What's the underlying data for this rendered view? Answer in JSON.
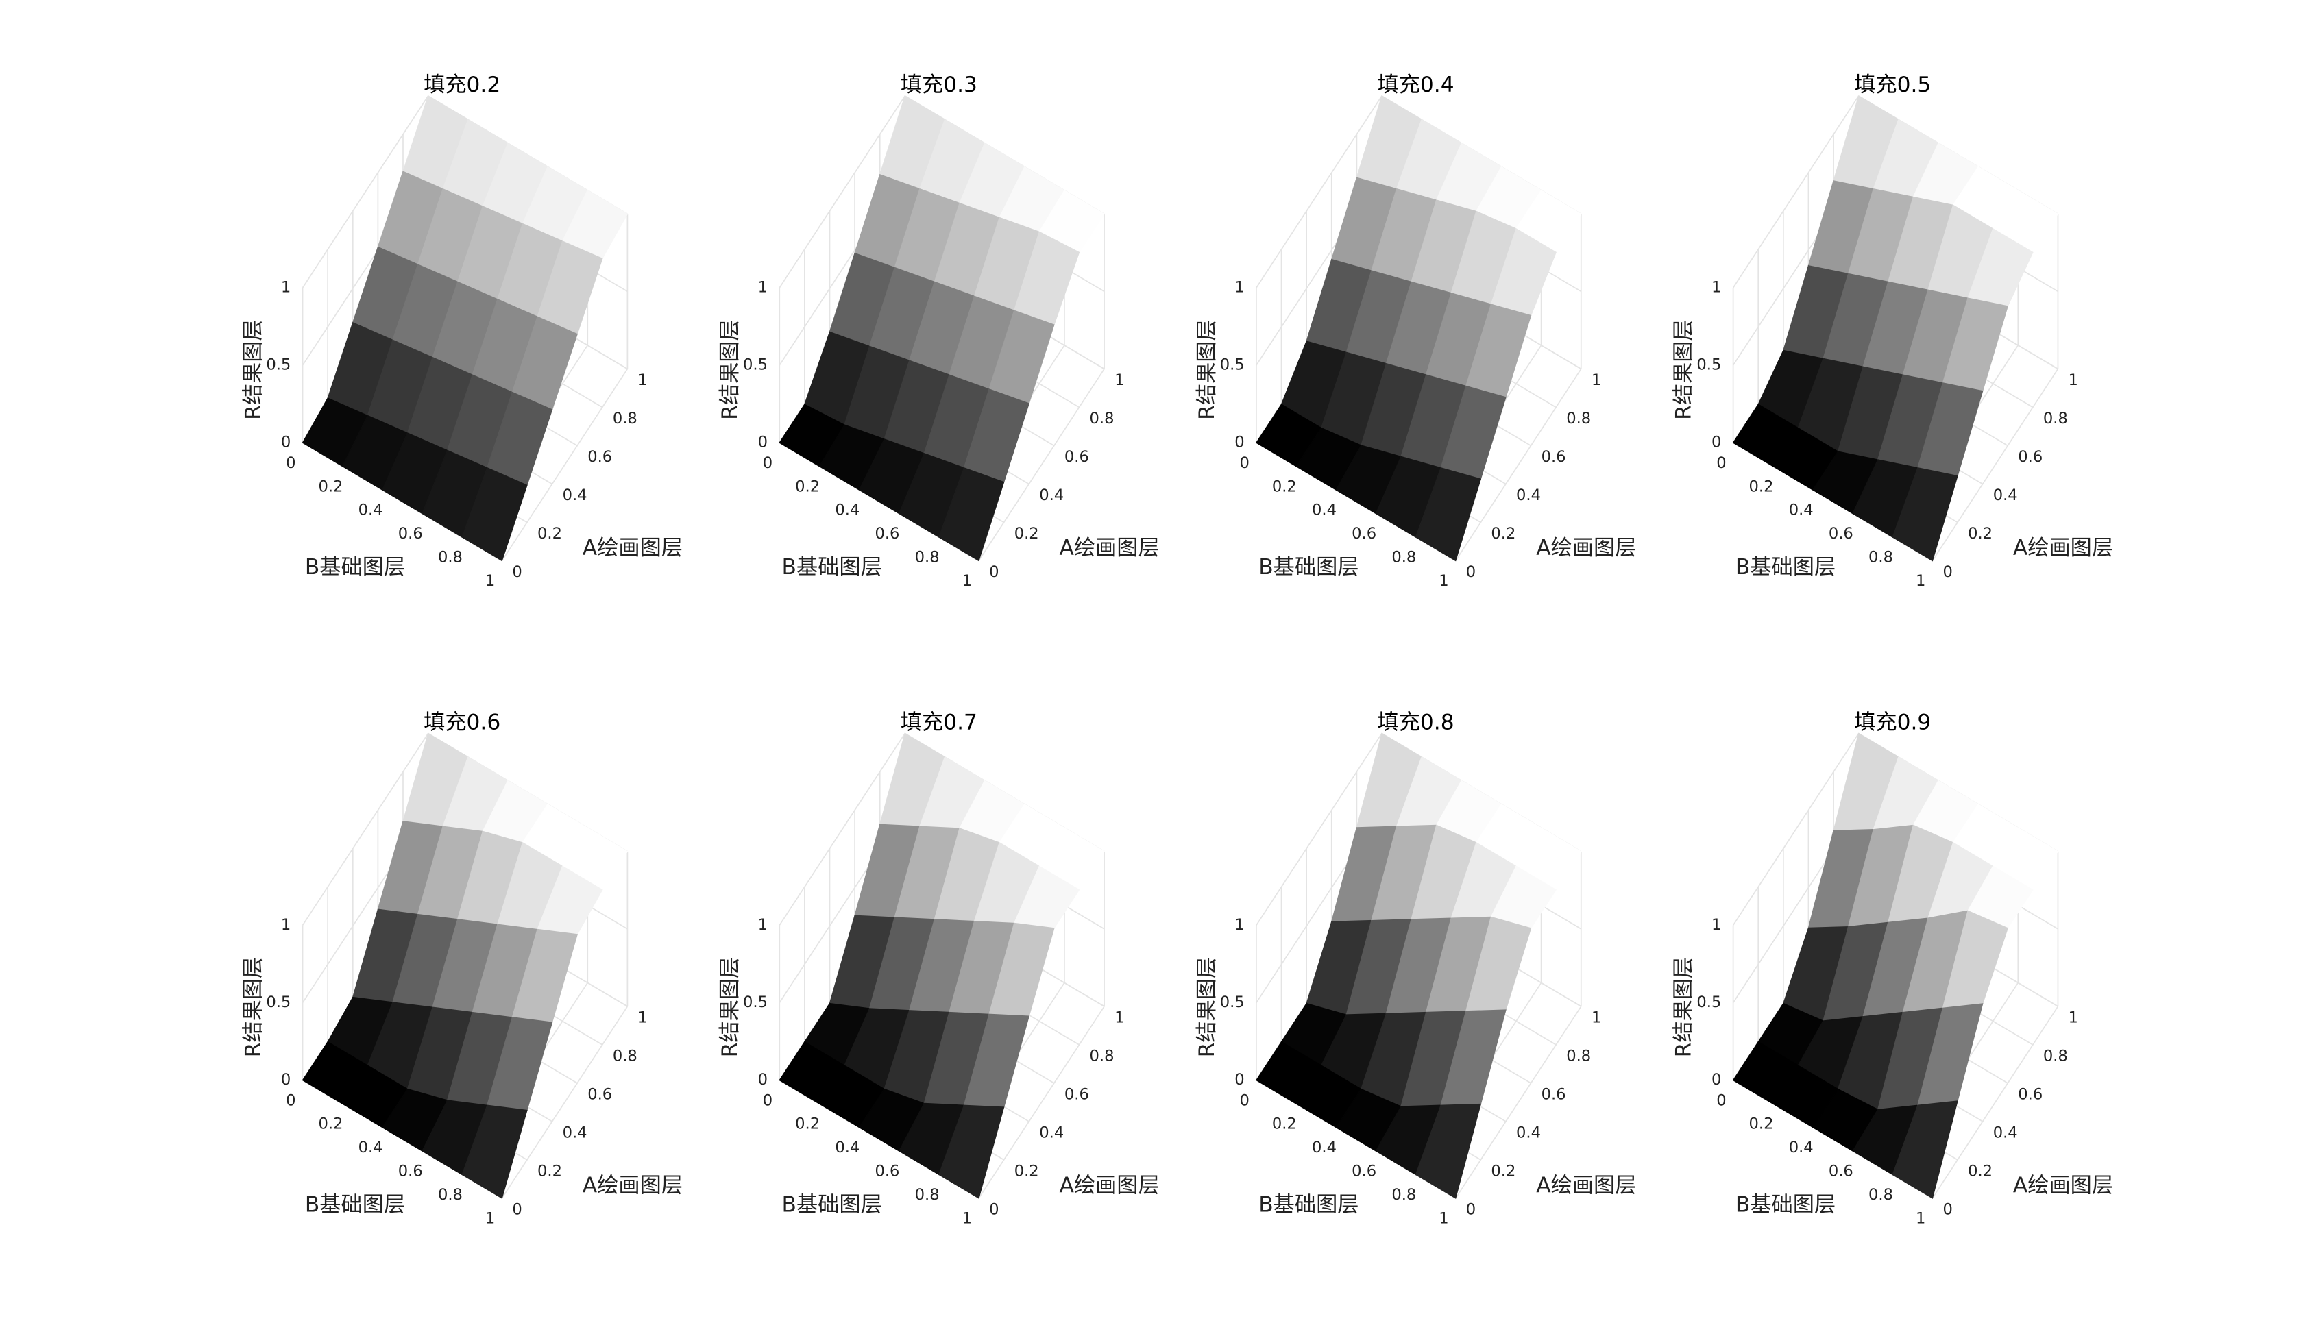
{
  "chart_data": [
    {
      "type": "surface",
      "title": "填充0.2",
      "xlabel": "B基础图层",
      "ylabel": "A绘画图层",
      "zlabel": "R结果图层",
      "colormap": "gray",
      "grid": true,
      "x": [
        0,
        0.2,
        0.4,
        0.6,
        0.8,
        1
      ],
      "y": [
        0,
        0.2,
        0.4,
        0.6,
        0.8,
        1
      ],
      "z": [
        [
          0,
          0.04,
          0.28,
          0.52,
          0.76,
          1
        ],
        [
          0,
          0.08,
          0.32,
          0.56,
          0.8,
          1
        ],
        [
          0,
          0.12,
          0.36,
          0.6,
          0.84,
          1
        ],
        [
          0,
          0.16,
          0.4,
          0.64,
          0.88,
          1
        ],
        [
          0,
          0.2,
          0.44,
          0.68,
          0.92,
          1
        ],
        [
          0,
          0.24,
          0.48,
          0.72,
          0.96,
          1
        ]
      ],
      "xlim": [
        0,
        1
      ],
      "ylim": [
        0,
        1
      ],
      "zlim": [
        0,
        1
      ],
      "xticks": [
        0,
        0.2,
        0.4,
        0.6,
        0.8,
        1
      ],
      "yticks": [
        0,
        0.2,
        0.4,
        0.6,
        0.8,
        1
      ],
      "zticks": [
        0,
        0.5,
        1
      ]
    },
    {
      "type": "surface",
      "title": "填充0.3",
      "xlabel": "B基础图层",
      "ylabel": "A绘画图层",
      "zlabel": "R结果图层",
      "colormap": "gray",
      "grid": true,
      "x": [
        0,
        0.2,
        0.4,
        0.6,
        0.8,
        1
      ],
      "y": [
        0,
        0.2,
        0.4,
        0.6,
        0.8,
        1
      ],
      "z": [
        [
          0,
          0,
          0.22,
          0.48,
          0.74,
          1
        ],
        [
          0,
          0.02,
          0.28,
          0.54,
          0.8,
          1
        ],
        [
          0,
          0.08,
          0.34,
          0.6,
          0.86,
          1
        ],
        [
          0,
          0.14,
          0.4,
          0.66,
          0.92,
          1
        ],
        [
          0,
          0.2,
          0.46,
          0.72,
          0.98,
          1
        ],
        [
          0,
          0.26,
          0.52,
          0.78,
          1,
          1
        ]
      ],
      "xlim": [
        0,
        1
      ],
      "ylim": [
        0,
        1
      ],
      "zlim": [
        0,
        1
      ],
      "xticks": [
        0,
        0.2,
        0.4,
        0.6,
        0.8,
        1
      ],
      "yticks": [
        0,
        0.2,
        0.4,
        0.6,
        0.8,
        1
      ],
      "zticks": [
        0,
        0.5,
        1
      ]
    },
    {
      "type": "surface",
      "title": "填充0.4",
      "xlabel": "B基础图层",
      "ylabel": "A绘画图层",
      "zlabel": "R结果图层",
      "colormap": "gray",
      "grid": true,
      "x": [
        0,
        0.2,
        0.4,
        0.6,
        0.8,
        1
      ],
      "y": [
        0,
        0.2,
        0.4,
        0.6,
        0.8,
        1
      ],
      "z": [
        [
          0,
          0,
          0.16,
          0.44,
          0.72,
          1
        ],
        [
          0,
          0,
          0.24,
          0.52,
          0.8,
          1
        ],
        [
          0,
          0.04,
          0.32,
          0.6,
          0.88,
          1
        ],
        [
          0,
          0.12,
          0.4,
          0.68,
          0.96,
          1
        ],
        [
          0,
          0.2,
          0.48,
          0.76,
          1,
          1
        ],
        [
          0,
          0.28,
          0.56,
          0.84,
          1,
          1
        ]
      ],
      "xlim": [
        0,
        1
      ],
      "ylim": [
        0,
        1
      ],
      "zlim": [
        0,
        1
      ],
      "xticks": [
        0,
        0.2,
        0.4,
        0.6,
        0.8,
        1
      ],
      "yticks": [
        0,
        0.2,
        0.4,
        0.6,
        0.8,
        1
      ],
      "zticks": [
        0,
        0.5,
        1
      ]
    },
    {
      "type": "surface",
      "title": "填充0.5",
      "xlabel": "B基础图层",
      "ylabel": "A绘画图层",
      "zlabel": "R结果图层",
      "colormap": "gray",
      "grid": true,
      "x": [
        0,
        0.2,
        0.4,
        0.6,
        0.8,
        1
      ],
      "y": [
        0,
        0.2,
        0.4,
        0.6,
        0.8,
        1
      ],
      "z": [
        [
          0,
          0,
          0.1,
          0.4,
          0.7,
          1
        ],
        [
          0,
          0,
          0.2,
          0.5,
          0.8,
          1
        ],
        [
          0,
          0,
          0.3,
          0.6,
          0.9,
          1
        ],
        [
          0,
          0.1,
          0.4,
          0.7,
          1,
          1
        ],
        [
          0,
          0.2,
          0.5,
          0.8,
          1,
          1
        ],
        [
          0,
          0.3,
          0.6,
          0.9,
          1,
          1
        ]
      ],
      "xlim": [
        0,
        1
      ],
      "ylim": [
        0,
        1
      ],
      "zlim": [
        0,
        1
      ],
      "xticks": [
        0,
        0.2,
        0.4,
        0.6,
        0.8,
        1
      ],
      "yticks": [
        0,
        0.2,
        0.4,
        0.6,
        0.8,
        1
      ],
      "zticks": [
        0,
        0.5,
        1
      ]
    },
    {
      "type": "surface",
      "title": "填充0.6",
      "xlabel": "B基础图层",
      "ylabel": "A绘画图层",
      "zlabel": "R结果图层",
      "colormap": "gray",
      "grid": true,
      "x": [
        0,
        0.2,
        0.4,
        0.6,
        0.8,
        1
      ],
      "y": [
        0,
        0.2,
        0.4,
        0.6,
        0.8,
        1
      ],
      "z": [
        [
          0,
          0,
          0.04,
          0.36,
          0.68,
          1
        ],
        [
          0,
          0,
          0.16,
          0.48,
          0.8,
          1
        ],
        [
          0,
          0,
          0.28,
          0.6,
          0.92,
          1
        ],
        [
          0,
          0.08,
          0.4,
          0.72,
          1,
          1
        ],
        [
          0,
          0.2,
          0.52,
          0.84,
          1,
          1
        ],
        [
          0,
          0.32,
          0.64,
          0.96,
          1,
          1
        ]
      ],
      "xlim": [
        0,
        1
      ],
      "ylim": [
        0,
        1
      ],
      "zlim": [
        0,
        1
      ],
      "xticks": [
        0,
        0.2,
        0.4,
        0.6,
        0.8,
        1
      ],
      "yticks": [
        0,
        0.2,
        0.4,
        0.6,
        0.8,
        1
      ],
      "zticks": [
        0,
        0.5,
        1
      ]
    },
    {
      "type": "surface",
      "title": "填充0.7",
      "xlabel": "B基础图层",
      "ylabel": "A绘画图层",
      "zlabel": "R结果图层",
      "colormap": "gray",
      "grid": true,
      "x": [
        0,
        0.2,
        0.4,
        0.6,
        0.8,
        1
      ],
      "y": [
        0,
        0.2,
        0.4,
        0.6,
        0.8,
        1
      ],
      "z": [
        [
          0,
          0,
          0,
          0.32,
          0.66,
          1
        ],
        [
          0,
          0,
          0.12,
          0.46,
          0.8,
          1
        ],
        [
          0,
          0,
          0.26,
          0.6,
          0.94,
          1
        ],
        [
          0,
          0.06,
          0.4,
          0.74,
          1,
          1
        ],
        [
          0,
          0.2,
          0.54,
          0.88,
          1,
          1
        ],
        [
          0,
          0.34,
          0.68,
          1,
          1,
          1
        ]
      ],
      "xlim": [
        0,
        1
      ],
      "ylim": [
        0,
        1
      ],
      "zlim": [
        0,
        1
      ],
      "xticks": [
        0,
        0.2,
        0.4,
        0.6,
        0.8,
        1
      ],
      "yticks": [
        0,
        0.2,
        0.4,
        0.6,
        0.8,
        1
      ],
      "zticks": [
        0,
        0.5,
        1
      ]
    },
    {
      "type": "surface",
      "title": "填充0.8",
      "xlabel": "B基础图层",
      "ylabel": "A绘画图层",
      "zlabel": "R结果图层",
      "colormap": "gray",
      "grid": true,
      "x": [
        0,
        0.2,
        0.4,
        0.6,
        0.8,
        1
      ],
      "y": [
        0,
        0.2,
        0.4,
        0.6,
        0.8,
        1
      ],
      "z": [
        [
          0,
          0,
          0,
          0.28,
          0.64,
          1
        ],
        [
          0,
          0,
          0.08,
          0.44,
          0.8,
          1
        ],
        [
          0,
          0,
          0.24,
          0.6,
          0.96,
          1
        ],
        [
          0,
          0.04,
          0.4,
          0.76,
          1,
          1
        ],
        [
          0,
          0.2,
          0.56,
          0.92,
          1,
          1
        ],
        [
          0,
          0.36,
          0.72,
          1,
          1,
          1
        ]
      ],
      "xlim": [
        0,
        1
      ],
      "ylim": [
        0,
        1
      ],
      "zlim": [
        0,
        1
      ],
      "xticks": [
        0,
        0.2,
        0.4,
        0.6,
        0.8,
        1
      ],
      "yticks": [
        0,
        0.2,
        0.4,
        0.6,
        0.8,
        1
      ],
      "zticks": [
        0,
        0.5,
        1
      ]
    },
    {
      "type": "surface",
      "title": "填充0.9",
      "xlabel": "B基础图层",
      "ylabel": "A绘画图层",
      "zlabel": "R结果图层",
      "colormap": "gray",
      "grid": true,
      "x": [
        0,
        0.2,
        0.4,
        0.6,
        0.8,
        1
      ],
      "y": [
        0,
        0.2,
        0.4,
        0.6,
        0.8,
        1
      ],
      "z": [
        [
          0,
          0,
          0,
          0.24,
          0.62,
          1
        ],
        [
          0,
          0,
          0.04,
          0.4,
          0.78,
          1
        ],
        [
          0,
          0,
          0.22,
          0.58,
          0.96,
          1
        ],
        [
          0,
          0.02,
          0.4,
          0.76,
          1,
          1
        ],
        [
          0,
          0.2,
          0.58,
          0.96,
          1,
          1
        ],
        [
          0,
          0.38,
          0.76,
          1,
          1,
          1
        ]
      ],
      "xlim": [
        0,
        1
      ],
      "ylim": [
        0,
        1
      ],
      "zlim": [
        0,
        1
      ],
      "xticks": [
        0,
        0.2,
        0.4,
        0.6,
        0.8,
        1
      ],
      "yticks": [
        0,
        0.2,
        0.4,
        0.6,
        0.8,
        1
      ],
      "zticks": [
        0,
        0.5,
        1
      ]
    }
  ]
}
